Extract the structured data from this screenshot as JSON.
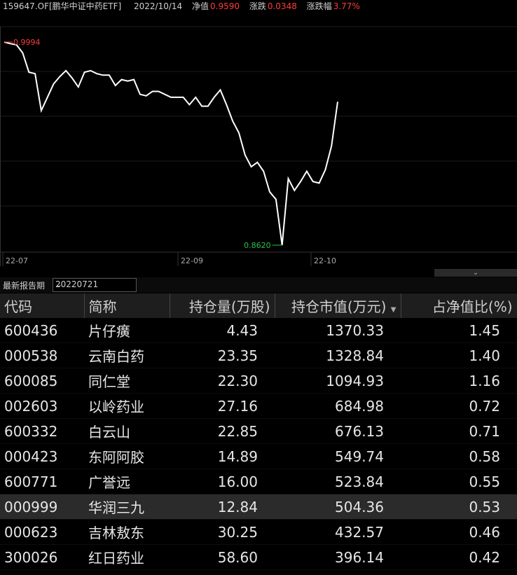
{
  "header": {
    "code": "159647.OF[鹏华中证中药ETF]",
    "date": "2022/10/14",
    "nav_label": "净值",
    "nav_value": "0.9590",
    "chg_label": "涨跌",
    "chg_value": "0.0348",
    "pct_label": "涨跌幅",
    "pct_value": "3.77%"
  },
  "chart_data": {
    "type": "line",
    "x_labels": [
      "22-07",
      "22-09",
      "22-10"
    ],
    "max_label": "0.9994",
    "min_label": "0.8620",
    "values": [
      0.9994,
      0.9983,
      0.9975,
      0.992,
      0.979,
      0.978,
      0.953,
      0.962,
      0.971,
      0.976,
      0.98,
      0.975,
      0.969,
      0.979,
      0.98,
      0.978,
      0.977,
      0.977,
      0.97,
      0.974,
      0.973,
      0.974,
      0.964,
      0.963,
      0.966,
      0.966,
      0.964,
      0.962,
      0.962,
      0.962,
      0.957,
      0.962,
      0.956,
      0.956,
      0.962,
      0.967,
      0.957,
      0.946,
      0.938,
      0.923,
      0.915,
      0.918,
      0.912,
      0.898,
      0.893,
      0.862,
      0.907,
      0.899,
      0.905,
      0.912,
      0.905,
      0.904,
      0.913,
      0.929,
      0.959
    ],
    "colors": {
      "line": "#ffffff",
      "max": "#ff3b3b",
      "min": "#27c24c",
      "grid": "#1c1c1c"
    }
  },
  "toolbar": {
    "label": "最新报告期",
    "period": "20220721"
  },
  "table": {
    "headers": [
      "代码",
      "简称",
      "持仓量(万股)",
      "持仓市值(万元)",
      "占净值比(%)"
    ],
    "rows": [
      [
        "600436",
        "片仔癀",
        "4.43",
        "1370.33",
        "1.45"
      ],
      [
        "000538",
        "云南白药",
        "23.35",
        "1328.84",
        "1.40"
      ],
      [
        "600085",
        "同仁堂",
        "22.30",
        "1094.93",
        "1.16"
      ],
      [
        "002603",
        "以岭药业",
        "27.16",
        "684.98",
        "0.72"
      ],
      [
        "600332",
        "白云山",
        "22.85",
        "676.13",
        "0.71"
      ],
      [
        "000423",
        "东阿阿胶",
        "14.89",
        "549.74",
        "0.58"
      ],
      [
        "600771",
        "广誉远",
        "16.00",
        "523.84",
        "0.55"
      ],
      [
        "000999",
        "华润三九",
        "12.84",
        "504.36",
        "0.53"
      ],
      [
        "000623",
        "吉林敖东",
        "30.25",
        "432.57",
        "0.46"
      ],
      [
        "300026",
        "红日药业",
        "58.60",
        "396.14",
        "0.42"
      ]
    ]
  }
}
